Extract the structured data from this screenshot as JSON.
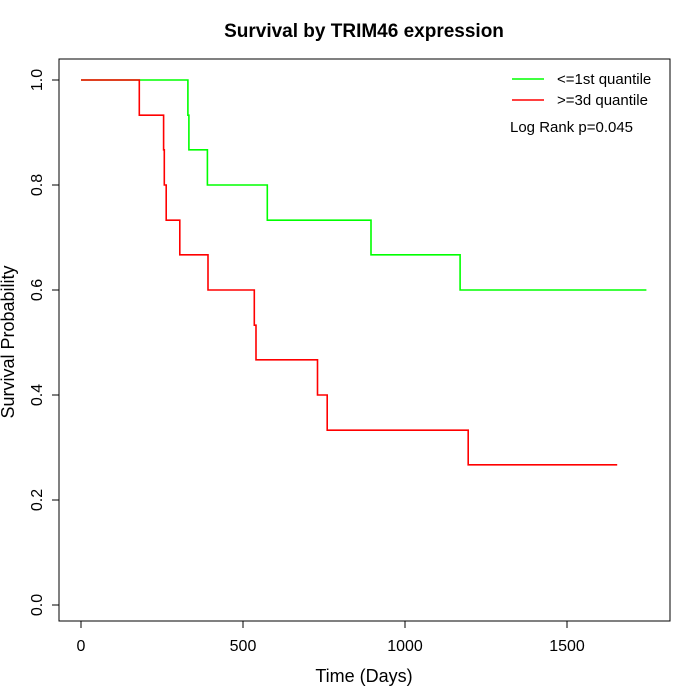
{
  "chart_data": {
    "type": "line",
    "title": "Survival by TRIM46 expression",
    "xlabel": "Time (Days)",
    "ylabel": "Survival Probability",
    "xlim": [
      0,
      1800
    ],
    "ylim": [
      0,
      1
    ],
    "x_ticks": [
      0,
      500,
      1000,
      1500
    ],
    "y_ticks": [
      0.0,
      0.2,
      0.4,
      0.6,
      0.8,
      1.0
    ],
    "x_tick_labels": [
      "0",
      "500",
      "1000",
      "1500"
    ],
    "y_tick_labels": [
      "0.0",
      "0.2",
      "0.4",
      "0.6",
      "0.8",
      "1.0"
    ],
    "grid": false,
    "legend_position": "top-right",
    "annotation": "Log Rank p=0.045",
    "series": [
      {
        "name": "<=1st quantile",
        "color": "#00ff00",
        "step_points": [
          [
            0,
            1.0
          ],
          [
            330,
            1.0
          ],
          [
            330,
            0.933
          ],
          [
            333,
            0.933
          ],
          [
            333,
            0.867
          ],
          [
            390,
            0.867
          ],
          [
            390,
            0.8
          ],
          [
            575,
            0.8
          ],
          [
            575,
            0.733
          ],
          [
            895,
            0.733
          ],
          [
            895,
            0.667
          ],
          [
            1170,
            0.667
          ],
          [
            1170,
            0.6
          ],
          [
            1745,
            0.6
          ]
        ]
      },
      {
        "name": ">=3d quantile",
        "color": "#ff0000",
        "step_points": [
          [
            0,
            1.0
          ],
          [
            180,
            1.0
          ],
          [
            180,
            0.933
          ],
          [
            255,
            0.933
          ],
          [
            255,
            0.867
          ],
          [
            257,
            0.867
          ],
          [
            257,
            0.8
          ],
          [
            263,
            0.8
          ],
          [
            263,
            0.733
          ],
          [
            305,
            0.733
          ],
          [
            305,
            0.667
          ],
          [
            392,
            0.667
          ],
          [
            392,
            0.6
          ],
          [
            535,
            0.6
          ],
          [
            535,
            0.533
          ],
          [
            540,
            0.533
          ],
          [
            540,
            0.467
          ],
          [
            730,
            0.467
          ],
          [
            730,
            0.4
          ],
          [
            760,
            0.4
          ],
          [
            760,
            0.333
          ],
          [
            1195,
            0.333
          ],
          [
            1195,
            0.267
          ],
          [
            1655,
            0.267
          ]
        ]
      }
    ]
  }
}
